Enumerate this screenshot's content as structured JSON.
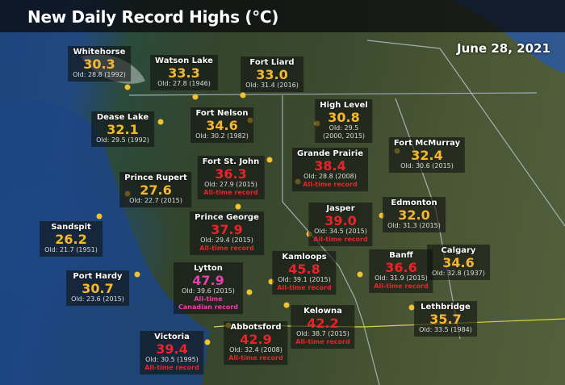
{
  "title": "New Daily Record Highs (°C)",
  "date": "June 28, 2021",
  "colors": {
    "new_record": "#f5b731",
    "all_time": "#e8242a",
    "canadian": "#e83fb0"
  },
  "cities": [
    {
      "name": "Whitehorse",
      "value": "30.3",
      "old": "Old: 28.8 (1992)",
      "type": "new_record"
    },
    {
      "name": "Watson Lake",
      "value": "33.3",
      "old": "Old: 27.8 (1946)",
      "type": "new_record"
    },
    {
      "name": "Fort Liard",
      "value": "33.0",
      "old": "Old: 31.4 (2016)",
      "type": "new_record"
    },
    {
      "name": "Dease Lake",
      "value": "32.1",
      "old": "Old: 29.5 (1992)",
      "type": "new_record"
    },
    {
      "name": "Fort Nelson",
      "value": "34.6",
      "old": "Old: 30.2 (1982)",
      "type": "new_record"
    },
    {
      "name": "High Level",
      "value": "30.8",
      "old": "Old: 29.5",
      "old2": "(2000, 2015)",
      "type": "new_record"
    },
    {
      "name": "Fort St. John",
      "value": "36.3",
      "old": "Old: 27.9 (2015)",
      "note": "All-time record",
      "type": "all_time"
    },
    {
      "name": "Grande Prairie",
      "value": "38.4",
      "old": "Old: 28.8 (2008)",
      "note": "All-time record",
      "type": "all_time"
    },
    {
      "name": "Fort McMurray",
      "value": "32.4",
      "old": "Old: 30.6 (2015)",
      "type": "new_record"
    },
    {
      "name": "Prince Rupert",
      "value": "27.6",
      "old": "Old: 22.7 (2015)",
      "type": "new_record"
    },
    {
      "name": "Prince George",
      "value": "37.9",
      "old": "Old: 29.4 (2015)",
      "note": "All-time record",
      "type": "all_time"
    },
    {
      "name": "Jasper",
      "value": "39.0",
      "old": "Old: 34.5 (2015)",
      "note": "All-time record",
      "type": "all_time"
    },
    {
      "name": "Edmonton",
      "value": "32.0",
      "old": "Old: 31.3 (2015)",
      "type": "new_record"
    },
    {
      "name": "Sandspit",
      "value": "26.2",
      "old": "Old: 21.7 (1951)",
      "type": "new_record"
    },
    {
      "name": "Kamloops",
      "value": "45.8",
      "old": "Old: 39.1 (2015)",
      "note": "All-time record",
      "type": "all_time"
    },
    {
      "name": "Banff",
      "value": "36.6",
      "old": "Old: 31.9 (2015)",
      "note": "All-time record",
      "type": "all_time"
    },
    {
      "name": "Calgary",
      "value": "34.6",
      "old": "Old: 32.8 (1937)",
      "type": "new_record"
    },
    {
      "name": "Port Hardy",
      "value": "30.7",
      "old": "Old: 23.6 (2015)",
      "type": "new_record"
    },
    {
      "name": "Lytton",
      "value": "47.9",
      "old": "Old: 39.6 (2015)",
      "note": "All-time",
      "note2": "Canadian record",
      "type": "canadian"
    },
    {
      "name": "Lethbridge",
      "value": "35.7",
      "old": "Old: 33.5 (1984)",
      "type": "new_record"
    },
    {
      "name": "Kelowna",
      "value": "42.2",
      "old": "Old: 38.7 (2015)",
      "note": "All-time record",
      "type": "all_time"
    },
    {
      "name": "Abbotsford",
      "value": "42.9",
      "old": "Old: 32.4 (2008)",
      "note": "All-time record",
      "type": "all_time"
    },
    {
      "name": "Victoria",
      "value": "39.4",
      "old": "Old: 30.5 (1995)",
      "note": "All-time record",
      "type": "all_time"
    }
  ]
}
